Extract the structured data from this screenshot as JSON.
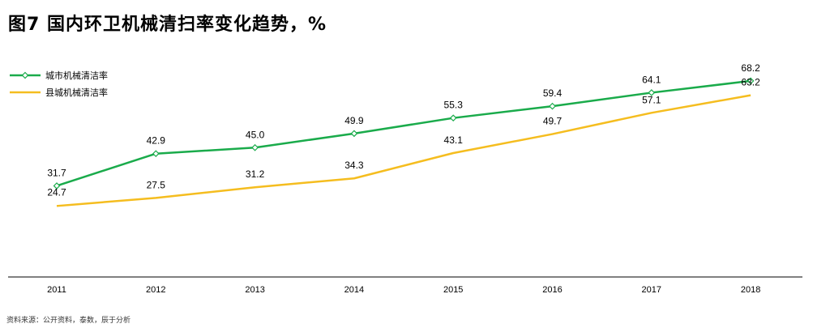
{
  "title": "图7 国内环卫机械清扫率变化趋势，%",
  "source": "资料来源：公开资料，泰数，辰于分析",
  "colors": {
    "green": "#1aab4b",
    "yellow": "#f5bd1f",
    "axis": "#000000"
  },
  "chart_data": {
    "type": "line",
    "title": "图7 国内环卫机械清扫率变化趋势，%",
    "xlabel": "",
    "ylabel": "",
    "categories": [
      "2011",
      "2012",
      "2013",
      "2014",
      "2015",
      "2016",
      "2017",
      "2018"
    ],
    "ylim": [
      0,
      75
    ],
    "grid": false,
    "legend_position": "top-left",
    "series": [
      {
        "name": "城市机械清洁率",
        "color": "#1aab4b",
        "marker": "diamond",
        "values": [
          31.7,
          42.9,
          45.0,
          49.9,
          55.3,
          59.4,
          64.1,
          68.2
        ],
        "labels": [
          "31.7",
          "42.9",
          "45.0",
          "49.9",
          "55.3",
          "59.4",
          "64.1",
          "68.2"
        ]
      },
      {
        "name": "县城机械清洁率",
        "color": "#f5bd1f",
        "marker": "none",
        "values": [
          24.7,
          27.5,
          31.2,
          34.3,
          43.1,
          49.7,
          57.1,
          63.2
        ],
        "labels": [
          "24.7",
          "27.5",
          "31.2",
          "34.3",
          "43.1",
          "49.7",
          "57.1",
          "63.2"
        ]
      }
    ]
  }
}
